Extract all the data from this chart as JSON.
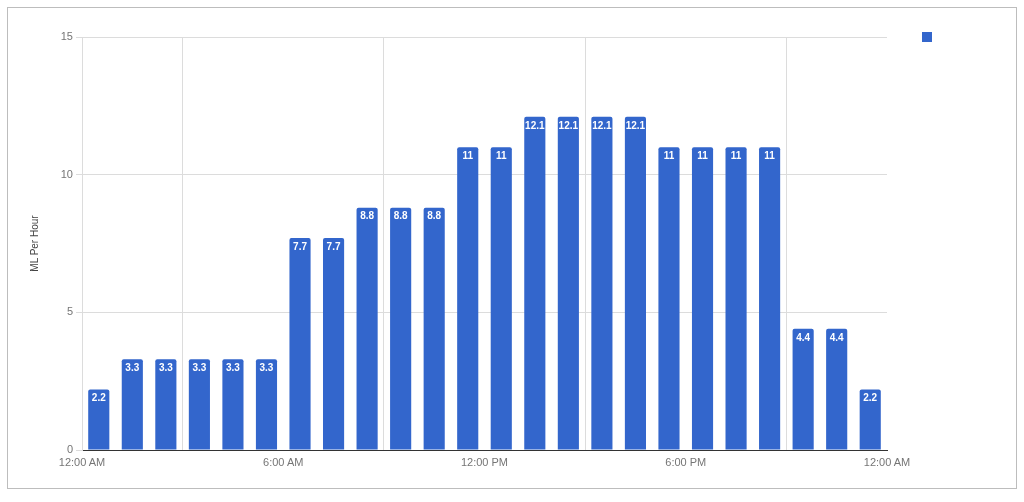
{
  "chart_data": {
    "type": "bar",
    "ylabel": "ML Per Hour",
    "x": [
      0.5,
      1.5,
      2.5,
      3.5,
      4.5,
      5.5,
      6.5,
      7.5,
      8.5,
      9.5,
      10.5,
      11.5,
      12.5,
      13.5,
      14.5,
      15.5,
      16.5,
      17.5,
      18.5,
      19.5,
      20.5,
      21.5,
      22.5,
      23.5
    ],
    "values": [
      2.2,
      3.3,
      3.3,
      3.3,
      3.3,
      3.3,
      7.7,
      7.7,
      8.8,
      8.8,
      8.8,
      11,
      11,
      12.1,
      12.1,
      12.1,
      12.1,
      11,
      11,
      11,
      11,
      4.4,
      4.4,
      2.2
    ],
    "color": "#3366cc",
    "xlim": [
      0,
      24
    ],
    "xticks": [
      {
        "value": 0,
        "label": "12:00 AM"
      },
      {
        "value": 6,
        "label": "6:00 AM"
      },
      {
        "value": 12,
        "label": "12:00 PM"
      },
      {
        "value": 18,
        "label": "6:00 PM"
      },
      {
        "value": 24,
        "label": "12:00 AM"
      }
    ],
    "ylim": [
      0,
      15
    ],
    "yticks": [
      0,
      5,
      10,
      15
    ],
    "grid": true,
    "data_labels": true
  }
}
